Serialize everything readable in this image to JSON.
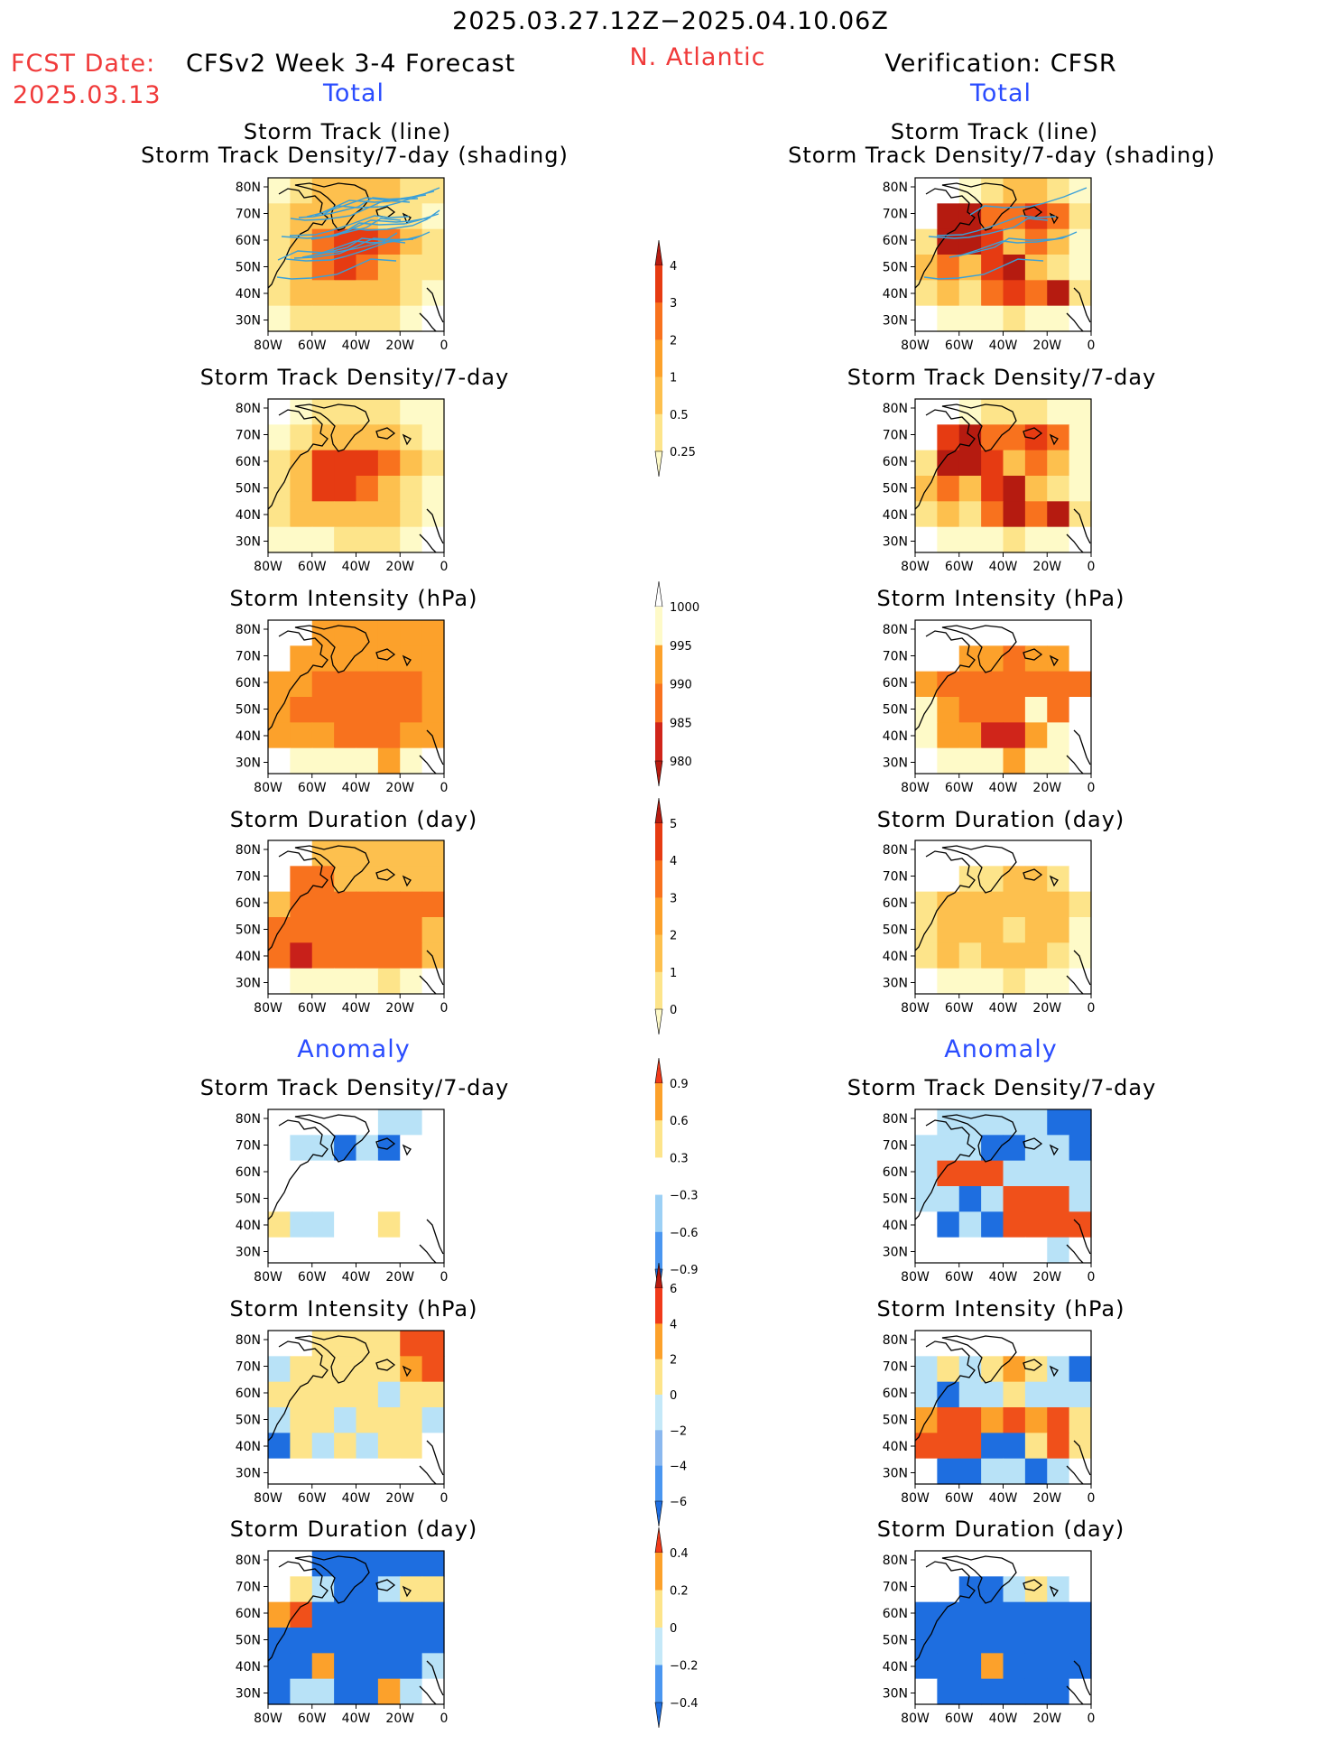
{
  "header": {
    "period": "2025.03.27.12Z−2025.04.10.06Z",
    "fcst_label": "FCST Date:",
    "fcst_date": "2025.03.13",
    "model": "CFSv2 Week 3-4 Forecast",
    "region": "N. Atlantic",
    "verification": "Verification: CFSR"
  },
  "sections": {
    "total_left": "Total",
    "total_right": "Total",
    "anomaly_left": "Anomaly",
    "anomaly_right": "Anomaly"
  },
  "titles": {
    "track_line": "Storm Track (line)",
    "track_shading": "Storm Track Density/7-day (shading)",
    "density": "Storm Track Density/7-day",
    "intensity": "Storm Intensity (hPa)",
    "duration": "Storm Duration (day)"
  },
  "axes": {
    "lat_ticks": [
      "80N",
      "70N",
      "60N",
      "50N",
      "40N",
      "30N"
    ],
    "lon_ticks": [
      "80W",
      "60W",
      "40W",
      "20W",
      "0"
    ]
  },
  "chart_data": [
    {
      "type": "heatmap",
      "column": "CFSv2 forecast",
      "section": "Total",
      "title": "Storm Track (line) / Storm Track Density/7-day (shading)",
      "levels": [
        0.25,
        0.5,
        1,
        2,
        3,
        4
      ],
      "field": [
        [
          1,
          2,
          3,
          3,
          3,
          3,
          2,
          2
        ],
        [
          2,
          3,
          3,
          3,
          3,
          2,
          2,
          1
        ],
        [
          2,
          3,
          4,
          5,
          5,
          4,
          3,
          2
        ],
        [
          2,
          3,
          4,
          5,
          4,
          3,
          2,
          2
        ],
        [
          2,
          3,
          3,
          3,
          3,
          3,
          2,
          1
        ],
        [
          1,
          2,
          2,
          2,
          2,
          2,
          1,
          0
        ]
      ]
    },
    {
      "type": "heatmap",
      "column": "CFSR verification",
      "section": "Total",
      "title": "Storm Track (line) / Storm Track Density/7-day (shading)",
      "levels": [
        0.25,
        0.5,
        1,
        2,
        3,
        4
      ],
      "field": [
        [
          0,
          0,
          1,
          2,
          3,
          3,
          2,
          1
        ],
        [
          0,
          6,
          6,
          4,
          4,
          5,
          4,
          2
        ],
        [
          2,
          6,
          6,
          5,
          3,
          4,
          3,
          1
        ],
        [
          3,
          4,
          3,
          5,
          6,
          3,
          2,
          1
        ],
        [
          2,
          3,
          2,
          4,
          5,
          4,
          6,
          2
        ],
        [
          0,
          1,
          1,
          1,
          2,
          1,
          1,
          0
        ]
      ]
    },
    {
      "type": "heatmap",
      "column": "CFSv2 forecast",
      "section": "Total",
      "title": "Storm Track Density/7-day",
      "levels": [
        0.25,
        0.5,
        1,
        2,
        3,
        4
      ],
      "field": [
        [
          0,
          1,
          2,
          2,
          2,
          2,
          1,
          1
        ],
        [
          1,
          2,
          3,
          3,
          3,
          3,
          2,
          1
        ],
        [
          2,
          3,
          5,
          5,
          5,
          4,
          3,
          2
        ],
        [
          2,
          3,
          5,
          5,
          4,
          3,
          2,
          1
        ],
        [
          2,
          3,
          3,
          3,
          3,
          3,
          2,
          1
        ],
        [
          1,
          1,
          1,
          2,
          2,
          2,
          1,
          0
        ]
      ]
    },
    {
      "type": "heatmap",
      "column": "CFSR verification",
      "section": "Total",
      "title": "Storm Track Density/7-day",
      "levels": [
        0.25,
        0.5,
        1,
        2,
        3,
        4
      ],
      "field": [
        [
          0,
          0,
          1,
          2,
          2,
          2,
          1,
          1
        ],
        [
          0,
          5,
          6,
          4,
          4,
          5,
          4,
          1
        ],
        [
          2,
          6,
          6,
          5,
          3,
          4,
          3,
          1
        ],
        [
          3,
          4,
          3,
          5,
          6,
          3,
          2,
          1
        ],
        [
          2,
          3,
          2,
          4,
          6,
          4,
          6,
          2
        ],
        [
          0,
          1,
          1,
          1,
          2,
          1,
          1,
          0
        ]
      ]
    },
    {
      "type": "heatmap",
      "column": "CFSv2 forecast",
      "section": "Total",
      "title": "Storm Intensity (hPa)",
      "levels": [
        980,
        985,
        990,
        995,
        1000
      ],
      "field": [
        [
          0,
          0,
          2,
          2,
          2,
          2,
          2,
          2
        ],
        [
          0,
          2,
          2,
          2,
          2,
          2,
          2,
          2
        ],
        [
          2,
          2,
          3,
          3,
          3,
          3,
          3,
          2
        ],
        [
          2,
          3,
          3,
          3,
          3,
          3,
          3,
          2
        ],
        [
          2,
          2,
          2,
          3,
          3,
          3,
          2,
          2
        ],
        [
          0,
          1,
          1,
          1,
          1,
          2,
          1,
          0
        ]
      ]
    },
    {
      "type": "heatmap",
      "column": "CFSR verification",
      "section": "Total",
      "title": "Storm Intensity (hPa)",
      "levels": [
        980,
        985,
        990,
        995,
        1000
      ],
      "field": [
        [
          0,
          0,
          0,
          0,
          0,
          0,
          0,
          0
        ],
        [
          0,
          0,
          2,
          2,
          3,
          2,
          2,
          0
        ],
        [
          2,
          3,
          3,
          3,
          3,
          3,
          3,
          3
        ],
        [
          1,
          2,
          3,
          3,
          3,
          1,
          3,
          0
        ],
        [
          1,
          2,
          2,
          4,
          4,
          2,
          1,
          0
        ],
        [
          0,
          1,
          1,
          1,
          2,
          1,
          1,
          0
        ]
      ]
    },
    {
      "type": "heatmap",
      "column": "CFSv2 forecast",
      "section": "Total",
      "title": "Storm Duration (day)",
      "levels": [
        0,
        1,
        2,
        3,
        4,
        5
      ],
      "field": [
        [
          0,
          0,
          3,
          3,
          3,
          3,
          3,
          3
        ],
        [
          0,
          4,
          4,
          3,
          3,
          3,
          3,
          3
        ],
        [
          3,
          4,
          4,
          4,
          4,
          4,
          4,
          4
        ],
        [
          4,
          4,
          4,
          4,
          4,
          4,
          4,
          3
        ],
        [
          4,
          5,
          4,
          4,
          4,
          4,
          4,
          3
        ],
        [
          0,
          1,
          1,
          1,
          1,
          2,
          1,
          0
        ]
      ]
    },
    {
      "type": "heatmap",
      "column": "CFSR verification",
      "section": "Total",
      "title": "Storm Duration (day)",
      "levels": [
        0,
        1,
        2,
        3,
        4,
        5
      ],
      "field": [
        [
          0,
          0,
          0,
          0,
          0,
          0,
          0,
          0
        ],
        [
          0,
          0,
          2,
          2,
          3,
          3,
          2,
          0
        ],
        [
          2,
          3,
          3,
          3,
          3,
          3,
          3,
          2
        ],
        [
          2,
          3,
          3,
          3,
          2,
          3,
          3,
          1
        ],
        [
          2,
          3,
          2,
          3,
          3,
          3,
          2,
          1
        ],
        [
          0,
          1,
          1,
          1,
          2,
          1,
          1,
          0
        ]
      ]
    },
    {
      "type": "heatmap",
      "column": "CFSv2 forecast",
      "section": "Anomaly",
      "title": "Storm Track Density/7-day",
      "levels": [
        -0.9,
        -0.6,
        -0.3,
        0.3,
        0.6,
        0.9
      ],
      "field": [
        [
          0,
          0,
          0,
          0,
          0,
          -1,
          -1,
          0
        ],
        [
          0,
          -1,
          -1,
          -2,
          -1,
          -2,
          0,
          0
        ],
        [
          0,
          0,
          0,
          0,
          0,
          0,
          0,
          0
        ],
        [
          0,
          0,
          0,
          0,
          0,
          0,
          0,
          0
        ],
        [
          1,
          -1,
          -1,
          0,
          0,
          1,
          0,
          0
        ],
        [
          0,
          0,
          0,
          0,
          0,
          0,
          0,
          0
        ]
      ]
    },
    {
      "type": "heatmap",
      "column": "CFSR verification",
      "section": "Anomaly",
      "title": "Storm Track Density/7-day",
      "levels": [
        -0.9,
        -0.6,
        -0.3,
        0.3,
        0.6,
        0.9
      ],
      "field": [
        [
          0,
          -1,
          -1,
          -1,
          -1,
          -1,
          -2,
          -2
        ],
        [
          -1,
          -1,
          -1,
          -2,
          -2,
          -1,
          -1,
          -2
        ],
        [
          -1,
          3,
          3,
          3,
          -1,
          -1,
          -1,
          -1
        ],
        [
          -1,
          -1,
          -2,
          -1,
          3,
          3,
          3,
          -1
        ],
        [
          0,
          -2,
          -1,
          -2,
          3,
          3,
          3,
          3
        ],
        [
          0,
          0,
          0,
          0,
          0,
          0,
          -1,
          0
        ]
      ]
    },
    {
      "type": "heatmap",
      "column": "CFSv2 forecast",
      "section": "Anomaly",
      "title": "Storm Intensity (hPa)",
      "levels": [
        -6,
        -4,
        -2,
        0,
        2,
        4,
        6
      ],
      "field": [
        [
          0,
          0,
          1,
          1,
          1,
          1,
          3,
          3
        ],
        [
          -1,
          1,
          1,
          1,
          1,
          1,
          2,
          3
        ],
        [
          1,
          1,
          1,
          1,
          1,
          -1,
          1,
          1
        ],
        [
          -1,
          1,
          1,
          -1,
          1,
          1,
          1,
          -1
        ],
        [
          -2,
          1,
          -1,
          1,
          -1,
          1,
          1,
          0
        ],
        [
          0,
          0,
          0,
          0,
          0,
          0,
          0,
          0
        ]
      ]
    },
    {
      "type": "heatmap",
      "column": "CFSR verification",
      "section": "Anomaly",
      "title": "Storm Intensity (hPa)",
      "levels": [
        -6,
        -4,
        -2,
        0,
        2,
        4,
        6
      ],
      "field": [
        [
          0,
          0,
          0,
          0,
          0,
          0,
          0,
          0
        ],
        [
          -1,
          1,
          -1,
          1,
          2,
          1,
          -1,
          -2
        ],
        [
          -1,
          -2,
          -1,
          -1,
          1,
          -1,
          -1,
          -1
        ],
        [
          2,
          3,
          3,
          2,
          3,
          2,
          3,
          1
        ],
        [
          3,
          3,
          3,
          -2,
          -2,
          1,
          3,
          1
        ],
        [
          0,
          -2,
          -2,
          -1,
          -1,
          -2,
          -1,
          0
        ]
      ]
    },
    {
      "type": "heatmap",
      "column": "CFSv2 forecast",
      "section": "Anomaly",
      "title": "Storm Duration (day)",
      "levels": [
        -0.4,
        -0.2,
        0,
        0.2,
        0.4
      ],
      "field": [
        [
          0,
          0,
          -2,
          -2,
          -2,
          -2,
          -2,
          -2
        ],
        [
          0,
          1,
          -1,
          -2,
          -2,
          -1,
          1,
          1
        ],
        [
          2,
          3,
          -2,
          -2,
          -2,
          -2,
          -2,
          -2
        ],
        [
          -2,
          -2,
          -2,
          -2,
          -2,
          -2,
          -2,
          -2
        ],
        [
          -2,
          -2,
          2,
          -2,
          -2,
          -2,
          -2,
          -1
        ],
        [
          -2,
          -1,
          -1,
          -2,
          -2,
          2,
          -1,
          0
        ]
      ]
    },
    {
      "type": "heatmap",
      "column": "CFSR verification",
      "section": "Anomaly",
      "title": "Storm Duration (day)",
      "levels": [
        -0.4,
        -0.2,
        0,
        0.2,
        0.4
      ],
      "field": [
        [
          0,
          0,
          0,
          0,
          0,
          0,
          0,
          0
        ],
        [
          0,
          0,
          -2,
          -2,
          -1,
          1,
          -1,
          0
        ],
        [
          -2,
          -2,
          -2,
          -2,
          -2,
          -2,
          -2,
          -2
        ],
        [
          -2,
          -2,
          -2,
          -2,
          -2,
          -2,
          -2,
          -2
        ],
        [
          -2,
          -2,
          -2,
          2,
          -2,
          -2,
          -2,
          -2
        ],
        [
          0,
          -2,
          -2,
          -2,
          -2,
          -2,
          -2,
          0
        ]
      ]
    }
  ],
  "colorbars": [
    {
      "labels": [
        "4",
        "3",
        "2",
        "1",
        "0.5",
        "0.25"
      ],
      "colors": [
        "#fefac8",
        "#fde48a",
        "#fdc04e",
        "#fca12b",
        "#f8721e",
        "#e63b12",
        "#b51b10"
      ]
    },
    {
      "labels": [
        "1000",
        "995",
        "990",
        "985",
        "980"
      ],
      "colors": [
        "#b51b10",
        "#d0251a",
        "#f8721e",
        "#fca12b",
        "#fefac8",
        "#ffffff"
      ]
    },
    {
      "labels": [
        "5",
        "4",
        "3",
        "2",
        "1",
        "0"
      ],
      "colors": [
        "#fefac8",
        "#fde48a",
        "#fdc04e",
        "#fca12b",
        "#f8721e",
        "#e63b12",
        "#b51b10"
      ]
    },
    {
      "labels": [
        "0.9",
        "0.6",
        "0.3",
        "−0.3",
        "−0.6",
        "−0.9"
      ],
      "colors": [
        "#1e6ee0",
        "#4a96f0",
        "#9cd0f5",
        "#ffffff",
        "#fde48a",
        "#fca12b",
        "#f03a1a"
      ]
    },
    {
      "labels": [
        "6",
        "4",
        "2",
        "0",
        "−2",
        "−4",
        "−6"
      ],
      "colors": [
        "#1e6ee0",
        "#4a96f0",
        "#8ab8ef",
        "#c4e8f8",
        "#fde48a",
        "#fca12b",
        "#f03a1a",
        "#b51b10"
      ]
    },
    {
      "labels": [
        "0.4",
        "0.2",
        "0",
        "−0.2",
        "−0.4"
      ],
      "colors": [
        "#1e6ee0",
        "#4a96f0",
        "#c4e8f8",
        "#fde48a",
        "#fca12b",
        "#f03a1a"
      ]
    }
  ],
  "colors": {
    "title_red": "#f03a3a",
    "title_blue": "#2a4cff",
    "track_line": "#3aa0d8"
  }
}
